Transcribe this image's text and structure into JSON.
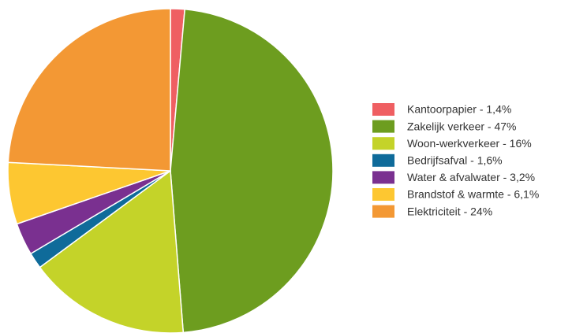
{
  "chart_data": {
    "type": "pie",
    "categories": [
      "Kantoorpapier - 1,4%",
      "Zakelijk verkeer - 47%",
      "Woon-werkverkeer - 16%",
      "Bedrijfsafval - 1,6%",
      "Water & afvalwater - 3,2%",
      "Brandstof & warmte - 6,1%",
      "Elektriciteit - 24%"
    ],
    "values": [
      1.4,
      47,
      16,
      1.6,
      3.2,
      6.1,
      24
    ],
    "colors": [
      "#ef5f62",
      "#6d9d1f",
      "#c4d329",
      "#0f6b9a",
      "#7a3090",
      "#fdc731",
      "#f39834"
    ],
    "legend": "right"
  }
}
